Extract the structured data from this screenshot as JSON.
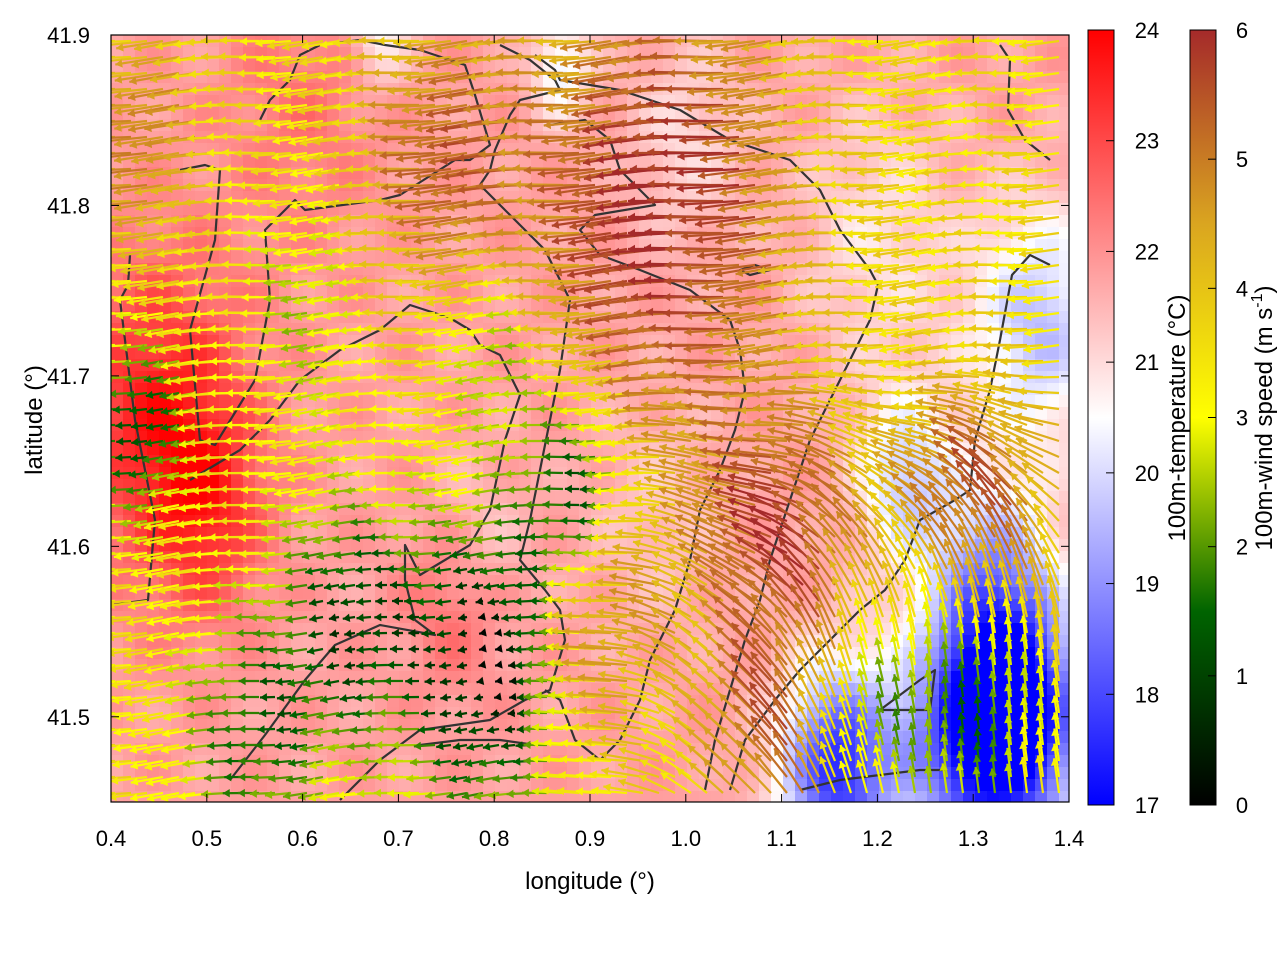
{
  "chart_data": {
    "type": "heatmap",
    "title": "",
    "xlabel": "longitude (°)",
    "ylabel": "latitude (°)",
    "xlim": [
      0.4,
      1.4
    ],
    "ylim": [
      41.45,
      41.9
    ],
    "xticks": [
      "0.4",
      "0.5",
      "0.6",
      "0.7",
      "0.8",
      "0.9",
      "1.0",
      "1.1",
      "1.2",
      "1.3",
      "1.4"
    ],
    "yticks": [
      "41.5",
      "41.6",
      "41.7",
      "41.8",
      "41.9"
    ],
    "grid": false,
    "temperature_colorbar": {
      "label": "100m-temperature (°C)",
      "range": [
        17,
        24
      ],
      "ticks": [
        "17",
        "18",
        "19",
        "20",
        "21",
        "22",
        "23",
        "24"
      ],
      "colors": [
        "#0000ff",
        "#ffffff",
        "#ff0000"
      ]
    },
    "wind_colorbar": {
      "label_main": "100m-wind speed (m s",
      "label_sup": "-1",
      "label_end": ")",
      "range": [
        0,
        6
      ],
      "ticks": [
        "0",
        "1",
        "2",
        "3",
        "4",
        "5",
        "6"
      ],
      "colors": [
        "#000000",
        "#006400",
        "#ffff00",
        "#daa520",
        "#a52a2a"
      ]
    },
    "temperature_field": {
      "base": 21.8,
      "features": [
        {
          "lon": 0.45,
          "lat": 41.68,
          "amp": 1.8,
          "radius": 0.09
        },
        {
          "lon": 0.5,
          "lat": 41.62,
          "amp": 1.2,
          "radius": 0.06
        },
        {
          "lon": 0.6,
          "lat": 41.86,
          "amp": 0.6,
          "radius": 0.08
        },
        {
          "lon": 0.76,
          "lat": 41.57,
          "amp": 0.9,
          "radius": 0.05
        },
        {
          "lon": 0.87,
          "lat": 41.88,
          "amp": -1.6,
          "radius": 0.03
        },
        {
          "lon": 0.68,
          "lat": 41.9,
          "amp": -1.3,
          "radius": 0.03
        },
        {
          "lon": 1.0,
          "lat": 41.84,
          "amp": -0.8,
          "radius": 0.06
        },
        {
          "lon": 0.78,
          "lat": 41.6,
          "amp": -0.7,
          "radius": 0.05
        },
        {
          "lon": 0.97,
          "lat": 41.62,
          "amp": -0.5,
          "radius": 0.07
        },
        {
          "lon": 1.37,
          "lat": 41.73,
          "amp": -2.2,
          "radius": 0.07
        },
        {
          "lon": 1.32,
          "lat": 41.58,
          "amp": -2.2,
          "radius": 0.06
        },
        {
          "lon": 1.3,
          "lat": 41.49,
          "amp": -4.2,
          "radius": 0.07
        },
        {
          "lon": 1.16,
          "lat": 41.47,
          "amp": -4.2,
          "radius": 0.06
        },
        {
          "lon": 1.36,
          "lat": 41.5,
          "amp": -3.6,
          "radius": 0.07
        },
        {
          "lon": 1.23,
          "lat": 41.64,
          "amp": -2.0,
          "radius": 0.05
        },
        {
          "lon": 1.2,
          "lat": 41.78,
          "amp": -0.9,
          "radius": 0.08
        }
      ]
    },
    "wind_speed_field": {
      "base": 3.5,
      "features": [
        {
          "lon": 1.0,
          "lat": 41.8,
          "amp": 2.6,
          "radius": 0.13
        },
        {
          "lon": 0.78,
          "lat": 41.83,
          "amp": 1.8,
          "radius": 0.08
        },
        {
          "lon": 0.45,
          "lat": 41.84,
          "amp": 1.5,
          "radius": 0.06
        },
        {
          "lon": 1.12,
          "lat": 41.6,
          "amp": 2.2,
          "radius": 0.08
        },
        {
          "lon": 1.32,
          "lat": 41.62,
          "amp": 2.0,
          "radius": 0.07
        },
        {
          "lon": 0.93,
          "lat": 41.56,
          "amp": 1.6,
          "radius": 0.07
        },
        {
          "lon": 1.1,
          "lat": 41.48,
          "amp": 1.6,
          "radius": 0.06
        },
        {
          "lon": 0.8,
          "lat": 41.53,
          "amp": -3.3,
          "radius": 0.085
        },
        {
          "lon": 0.9,
          "lat": 41.63,
          "amp": -2.6,
          "radius": 0.06
        },
        {
          "lon": 0.66,
          "lat": 41.56,
          "amp": -2.4,
          "radius": 0.07
        },
        {
          "lon": 0.44,
          "lat": 41.67,
          "amp": -2.5,
          "radius": 0.05
        },
        {
          "lon": 0.56,
          "lat": 41.49,
          "amp": -2.0,
          "radius": 0.07
        },
        {
          "lon": 0.82,
          "lat": 41.72,
          "amp": -1.5,
          "radius": 0.05
        },
        {
          "lon": 1.3,
          "lat": 41.5,
          "amp": -2.0,
          "radius": 0.06
        },
        {
          "lon": 1.2,
          "lat": 41.5,
          "amp": -1.4,
          "radius": 0.05
        },
        {
          "lon": 0.62,
          "lat": 41.74,
          "amp": -1.0,
          "radius": 0.06
        }
      ]
    }
  }
}
